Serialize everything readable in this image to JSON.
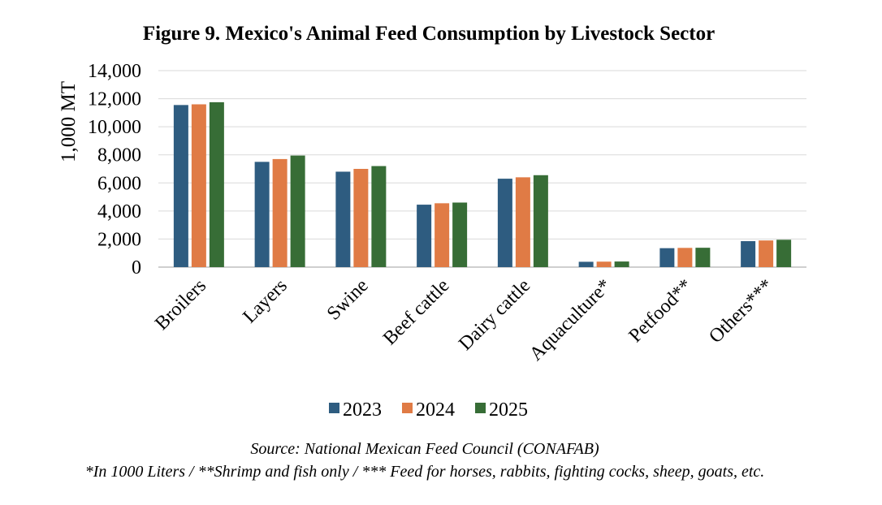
{
  "chart_data": {
    "type": "bar",
    "title": "Figure 9. Mexico's Animal Feed Consumption by Livestock Sector",
    "ylabel": "1,000 MT",
    "xlabel": "",
    "ylim": [
      0,
      14000
    ],
    "yticks": [
      "0",
      "2,000",
      "4,000",
      "6,000",
      "8,000",
      "10,000",
      "12,000",
      "14,000"
    ],
    "grid": true,
    "legend_position": "bottom",
    "categories": [
      "Broilers",
      "Layers",
      "Swine",
      "Beef cattle",
      "Dairy cattle",
      "Aquaculture*",
      "Petfood**",
      "Others***"
    ],
    "series": [
      {
        "name": "2023",
        "color": "#2E5C80",
        "values": [
          11550,
          7500,
          6800,
          4450,
          6300,
          380,
          1350,
          1850
        ]
      },
      {
        "name": "2024",
        "color": "#E07B45",
        "values": [
          11600,
          7700,
          7000,
          4550,
          6400,
          390,
          1370,
          1900
        ]
      },
      {
        "name": "2025",
        "color": "#376D36",
        "values": [
          11750,
          7950,
          7200,
          4600,
          6550,
          400,
          1380,
          1950
        ]
      }
    ]
  },
  "notes": {
    "source": "Source: National Mexican Feed Council (CONAFAB)",
    "footnote": "*In 1000 Liters / **Shrimp and fish only / *** Feed for horses, rabbits, fighting cocks, sheep, goats, etc."
  }
}
